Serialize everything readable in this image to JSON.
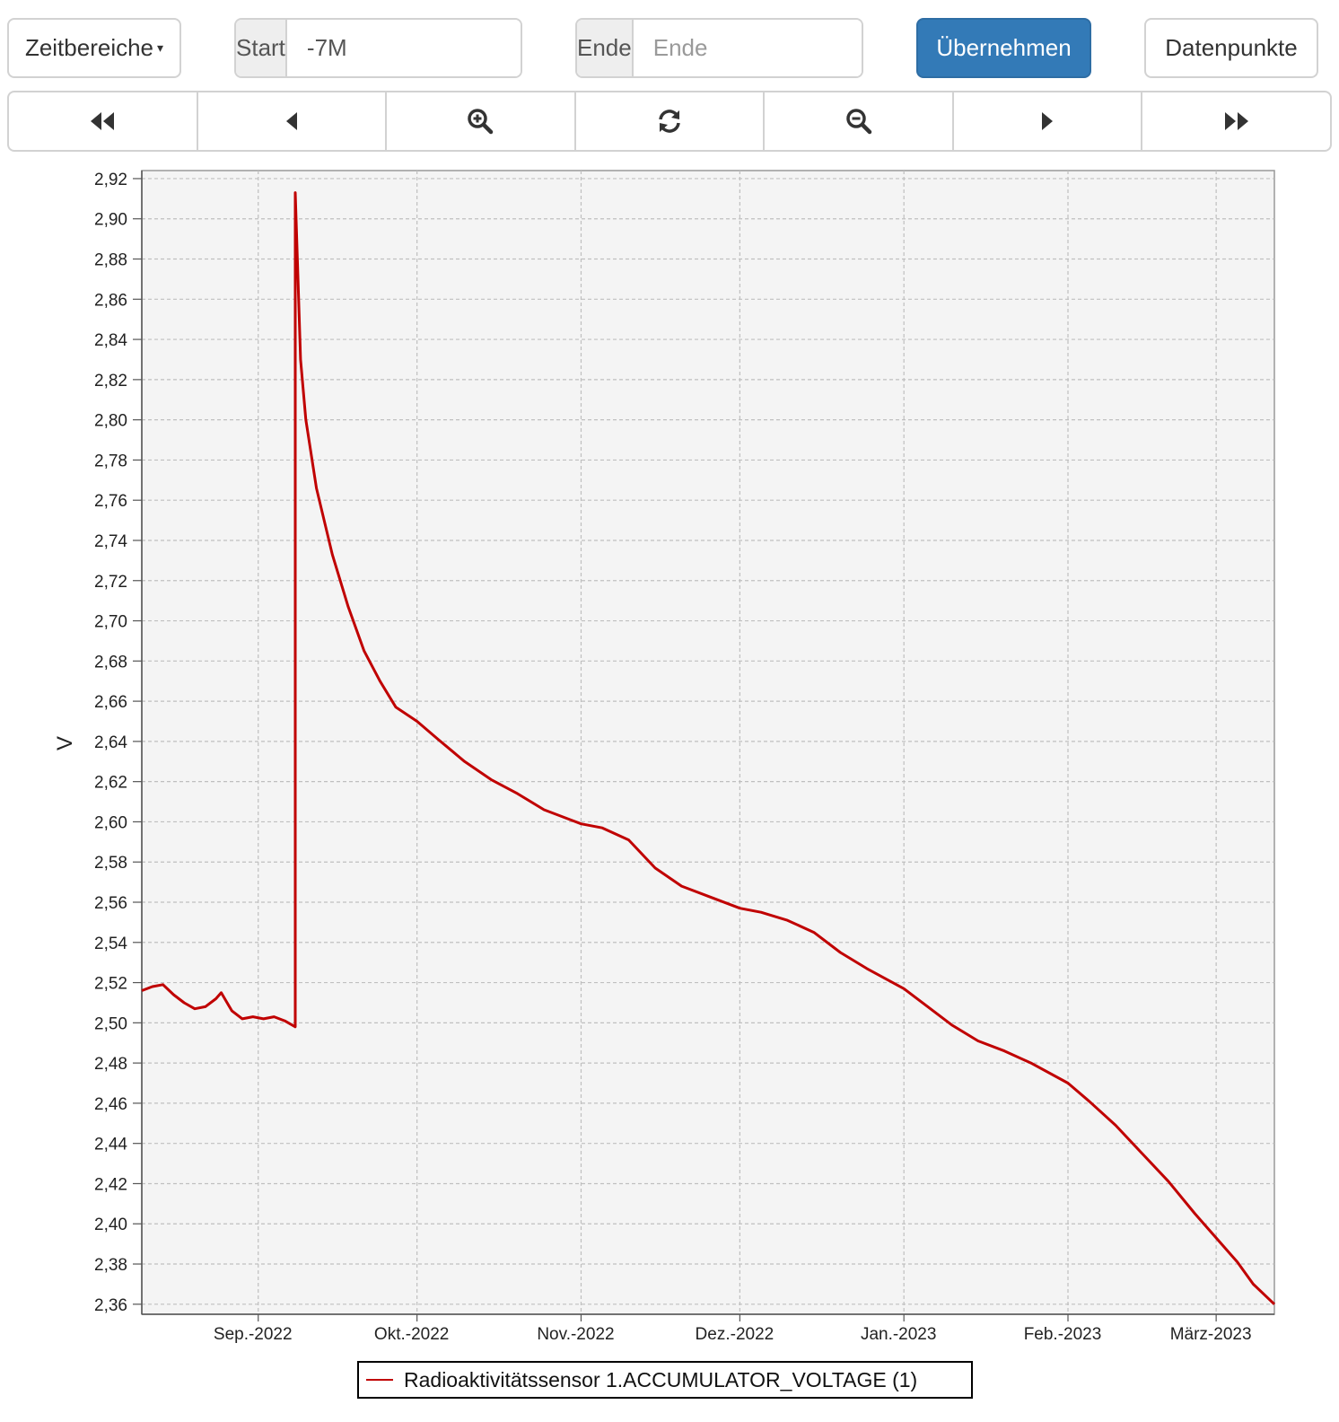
{
  "toolbar": {
    "ranges_label": "Zeitbereiche",
    "start_addon": "Start",
    "start_value": "-7M",
    "end_addon": "Ende",
    "end_placeholder": "Ende",
    "apply_label": "Übernehmen",
    "datapoints_label": "Datenpunkte"
  },
  "navigation": [
    {
      "name": "jump-back-button",
      "icon": "fast-backward-icon"
    },
    {
      "name": "step-back-button",
      "icon": "step-backward-icon"
    },
    {
      "name": "zoom-in-button",
      "icon": "zoom-in-icon"
    },
    {
      "name": "refresh-button",
      "icon": "refresh-icon"
    },
    {
      "name": "zoom-out-button",
      "icon": "zoom-out-icon"
    },
    {
      "name": "step-forward-button",
      "icon": "step-forward-icon"
    },
    {
      "name": "jump-forward-button",
      "icon": "fast-forward-icon"
    }
  ],
  "colors": {
    "series": "#c00000",
    "primary": "#337ab7",
    "plot_background": "#f4f4f4",
    "grid": "#bfbfbf"
  },
  "chart_data": {
    "type": "line",
    "title": "",
    "xlabel": "",
    "ylabel": "V",
    "xlim": [
      "2022-08-10",
      "2023-03-12"
    ],
    "ylim": [
      2.355,
      2.924
    ],
    "yticks": [
      2.36,
      2.38,
      2.4,
      2.42,
      2.44,
      2.46,
      2.48,
      2.5,
      2.52,
      2.54,
      2.56,
      2.58,
      2.6,
      2.62,
      2.64,
      2.66,
      2.68,
      2.7,
      2.72,
      2.74,
      2.76,
      2.78,
      2.8,
      2.82,
      2.84,
      2.86,
      2.88,
      2.9,
      2.92
    ],
    "ytick_labels": [
      "2,36",
      "2,38",
      "2,40",
      "2,42",
      "2,44",
      "2,46",
      "2,48",
      "2,50",
      "2,52",
      "2,54",
      "2,56",
      "2,58",
      "2,60",
      "2,62",
      "2,64",
      "2,66",
      "2,68",
      "2,70",
      "2,72",
      "2,74",
      "2,76",
      "2,78",
      "2,80",
      "2,82",
      "2,84",
      "2,86",
      "2,88",
      "2,90",
      "2,92"
    ],
    "xticks": [
      "2022-09-01",
      "2022-10-01",
      "2022-11-01",
      "2022-12-01",
      "2023-01-01",
      "2023-02-01",
      "2023-03-01"
    ],
    "xtick_labels": [
      "Sep.-2022",
      "Okt.-2022",
      "Nov.-2022",
      "Dez.-2022",
      "Jan.-2023",
      "Feb.-2023",
      "März-2023"
    ],
    "grid": true,
    "legend_position": "bottom-center",
    "series": [
      {
        "name": "Radioaktivitätssensor 1.ACCUMULATOR_VOLTAGE (1)",
        "color": "#c00000",
        "points": [
          [
            "2022-08-10",
            2.516
          ],
          [
            "2022-08-12",
            2.518
          ],
          [
            "2022-08-14",
            2.519
          ],
          [
            "2022-08-16",
            2.514
          ],
          [
            "2022-08-18",
            2.51
          ],
          [
            "2022-08-20",
            2.507
          ],
          [
            "2022-08-22",
            2.508
          ],
          [
            "2022-08-24",
            2.512
          ],
          [
            "2022-08-25",
            2.515
          ],
          [
            "2022-08-27",
            2.506
          ],
          [
            "2022-08-29",
            2.502
          ],
          [
            "2022-08-31",
            2.503
          ],
          [
            "2022-09-02",
            2.502
          ],
          [
            "2022-09-04",
            2.503
          ],
          [
            "2022-09-06",
            2.501
          ],
          [
            "2022-09-08",
            2.498
          ],
          [
            "2022-09-08",
            2.913
          ],
          [
            "2022-09-09",
            2.83
          ],
          [
            "2022-09-10",
            2.8
          ],
          [
            "2022-09-12",
            2.766
          ],
          [
            "2022-09-15",
            2.733
          ],
          [
            "2022-09-18",
            2.707
          ],
          [
            "2022-09-21",
            2.685
          ],
          [
            "2022-09-24",
            2.67
          ],
          [
            "2022-09-27",
            2.657
          ],
          [
            "2022-10-01",
            2.65
          ],
          [
            "2022-10-05",
            2.641
          ],
          [
            "2022-10-10",
            2.63
          ],
          [
            "2022-10-15",
            2.621
          ],
          [
            "2022-10-20",
            2.614
          ],
          [
            "2022-10-25",
            2.606
          ],
          [
            "2022-11-01",
            2.599
          ],
          [
            "2022-11-05",
            2.597
          ],
          [
            "2022-11-10",
            2.591
          ],
          [
            "2022-11-15",
            2.577
          ],
          [
            "2022-11-20",
            2.568
          ],
          [
            "2022-11-25",
            2.563
          ],
          [
            "2022-12-01",
            2.557
          ],
          [
            "2022-12-05",
            2.555
          ],
          [
            "2022-12-10",
            2.551
          ],
          [
            "2022-12-15",
            2.545
          ],
          [
            "2022-12-20",
            2.535
          ],
          [
            "2022-12-25",
            2.527
          ],
          [
            "2023-01-01",
            2.517
          ],
          [
            "2023-01-05",
            2.509
          ],
          [
            "2023-01-10",
            2.499
          ],
          [
            "2023-01-15",
            2.491
          ],
          [
            "2023-01-20",
            2.486
          ],
          [
            "2023-01-25",
            2.48
          ],
          [
            "2023-02-01",
            2.47
          ],
          [
            "2023-02-05",
            2.461
          ],
          [
            "2023-02-10",
            2.449
          ],
          [
            "2023-02-15",
            2.435
          ],
          [
            "2023-02-20",
            2.421
          ],
          [
            "2023-02-25",
            2.405
          ],
          [
            "2023-03-01",
            2.393
          ],
          [
            "2023-03-05",
            2.381
          ],
          [
            "2023-03-08",
            2.37
          ],
          [
            "2023-03-12",
            2.36
          ]
        ]
      }
    ]
  }
}
